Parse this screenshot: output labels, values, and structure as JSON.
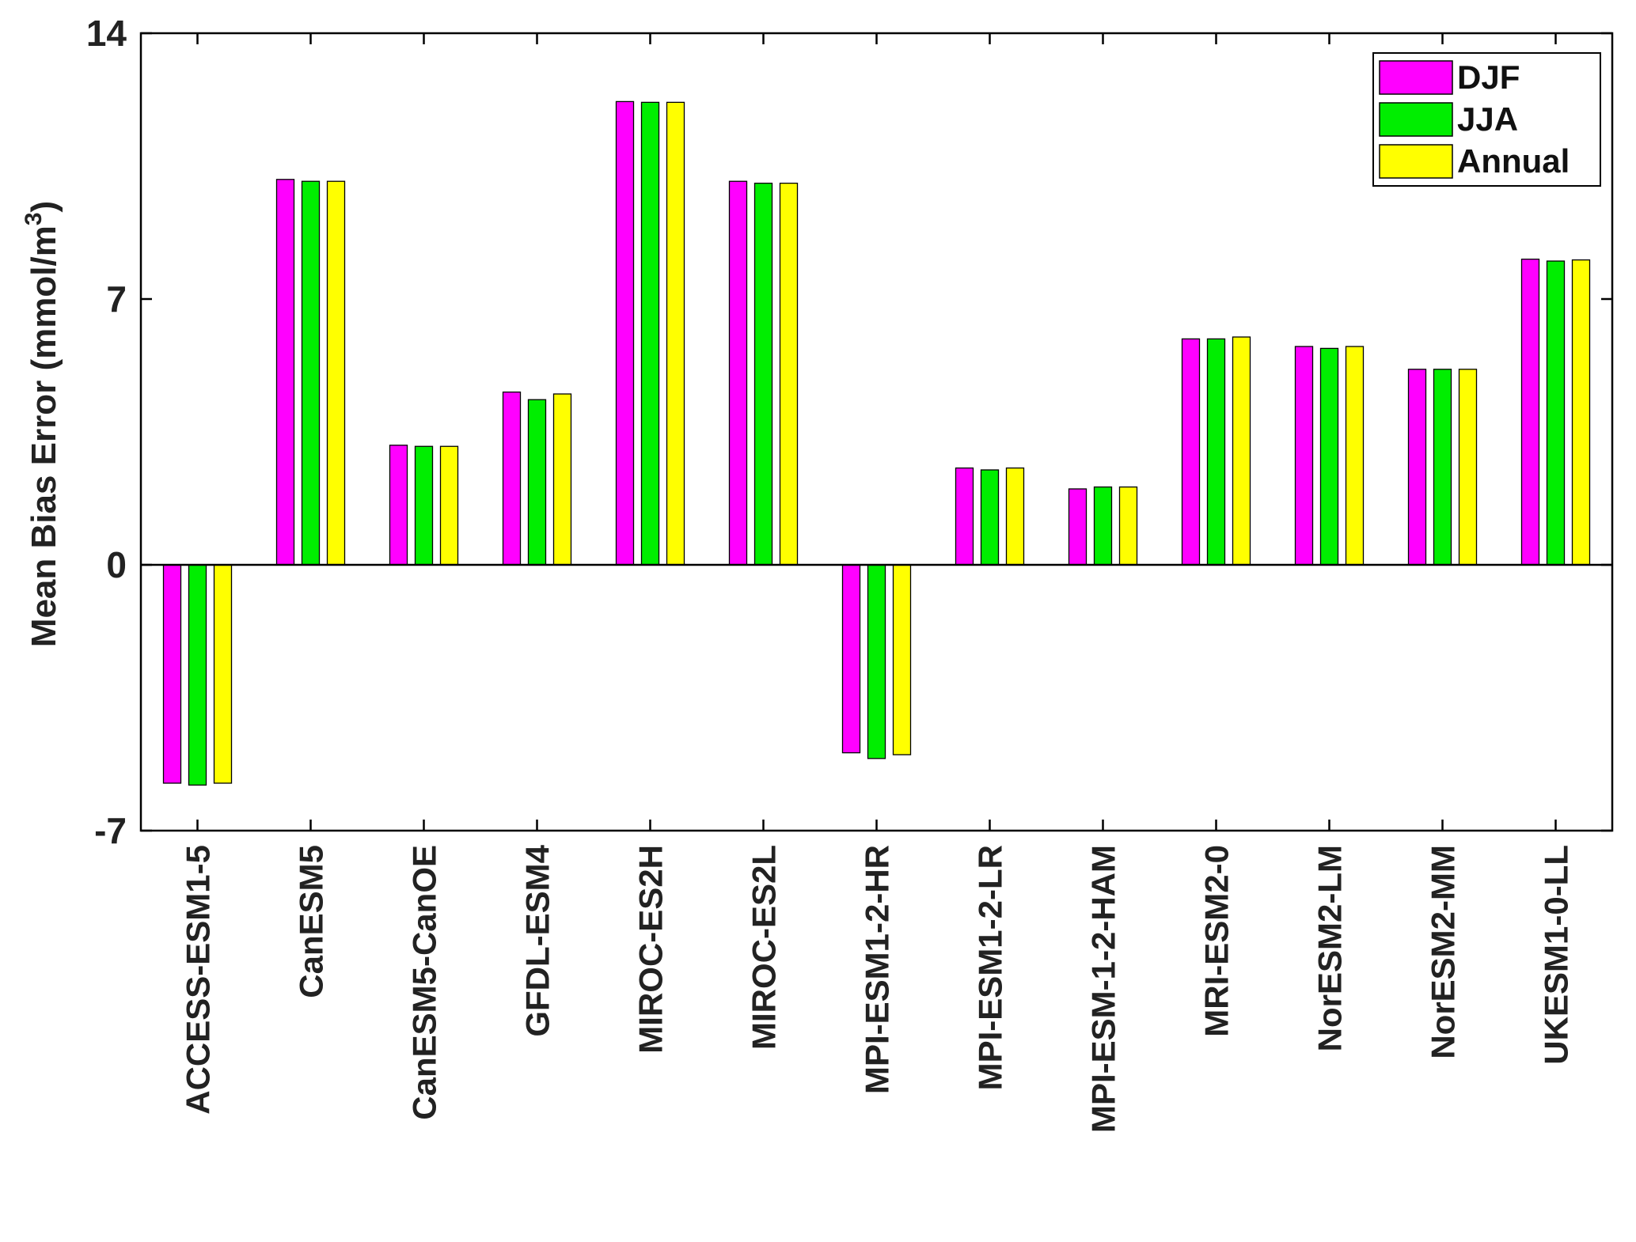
{
  "chart_data": {
    "type": "bar",
    "title": "",
    "xlabel": "",
    "ylabel": "Mean Bias Error (mmol/m",
    "ylabel_superscript": "3",
    "ylabel_close": ")",
    "ylim": [
      -7,
      14
    ],
    "yticks": [
      "14",
      "7",
      "0",
      "-7"
    ],
    "ytick_values": [
      14,
      7,
      0,
      -7
    ],
    "grid": false,
    "legend_position": "top-right",
    "categories": [
      "ACCESS-ESM1-5",
      "CanESM5",
      "CanESM5-CanOE",
      "GFDL-ESM4",
      "MIROC-ES2H",
      "MIROC-ES2L",
      "MPI-ESM1-2-HR",
      "MPI-ESM1-2-LR",
      "MPI-ESM-1-2-HAM",
      "MRI-ESM2-0",
      "NorESM2-LM",
      "NorESM2-MM",
      "UKESM1-0-LL"
    ],
    "series": [
      {
        "name": "DJF",
        "color": "#ff00ff",
        "values": [
          -5.75,
          10.15,
          3.15,
          4.55,
          12.2,
          10.1,
          -4.95,
          2.55,
          2.0,
          5.95,
          5.75,
          5.15,
          8.05
        ]
      },
      {
        "name": "JJA",
        "color": "#00ee00",
        "values": [
          -5.8,
          10.1,
          3.12,
          4.35,
          12.18,
          10.05,
          -5.1,
          2.5,
          2.05,
          5.95,
          5.7,
          5.15,
          8.0
        ]
      },
      {
        "name": "Annual",
        "color": "#ffff00",
        "values": [
          -5.75,
          10.1,
          3.12,
          4.5,
          12.18,
          10.05,
          -5.0,
          2.55,
          2.05,
          6.0,
          5.75,
          5.15,
          8.03
        ]
      }
    ]
  }
}
